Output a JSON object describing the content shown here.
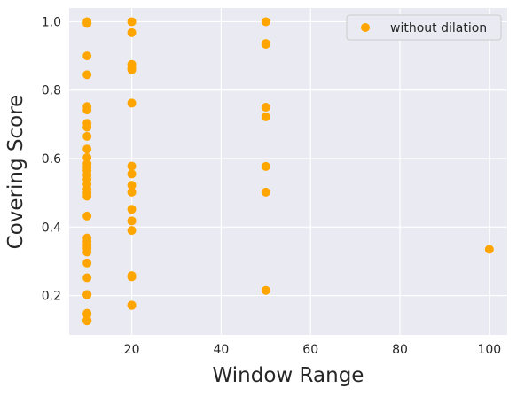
{
  "chart_data": {
    "type": "scatter",
    "xlabel": "Window Range",
    "ylabel": "Covering Score",
    "xlim": [
      6,
      104
    ],
    "ylim": [
      0.085,
      1.04
    ],
    "xticks": [
      20,
      40,
      60,
      80,
      100
    ],
    "yticks": [
      0.2,
      0.4,
      0.6,
      0.8,
      1.0
    ],
    "xtick_labels": [
      "20",
      "40",
      "60",
      "80",
      "100"
    ],
    "ytick_labels": [
      "0.2",
      "0.4",
      "0.6",
      "0.8",
      "1.0"
    ],
    "grid": true,
    "legend_position": "top-right",
    "series": [
      {
        "name": "without dilation",
        "color": "#ffa500",
        "x": [
          10,
          10,
          10,
          10,
          10,
          10,
          10,
          10,
          10,
          10,
          10,
          10,
          10,
          10,
          10,
          10,
          10,
          10,
          10,
          10,
          10,
          10,
          10,
          10,
          10,
          10,
          10,
          10,
          10,
          10,
          10,
          10,
          10,
          10,
          10,
          20,
          20,
          20,
          20,
          20,
          20,
          20,
          20,
          20,
          20,
          20,
          20,
          20,
          20,
          20,
          20,
          20,
          50,
          50,
          50,
          50,
          50,
          50,
          50,
          50,
          100
        ],
        "y": [
          1.0,
          0.995,
          0.9,
          0.845,
          0.752,
          0.742,
          0.703,
          0.692,
          0.665,
          0.628,
          0.603,
          0.585,
          0.575,
          0.565,
          0.552,
          0.54,
          0.525,
          0.51,
          0.5,
          0.49,
          0.432,
          0.368,
          0.358,
          0.347,
          0.338,
          0.327,
          0.295,
          0.252,
          0.203,
          0.202,
          0.148,
          0.145,
          0.128,
          0.127,
          0.126,
          1.0,
          0.968,
          0.875,
          0.865,
          0.86,
          0.762,
          0.578,
          0.555,
          0.522,
          0.502,
          0.452,
          0.418,
          0.39,
          0.258,
          0.255,
          0.172,
          0.171,
          1.0,
          0.936,
          0.934,
          0.75,
          0.722,
          0.577,
          0.502,
          0.215,
          0.335
        ]
      }
    ]
  }
}
